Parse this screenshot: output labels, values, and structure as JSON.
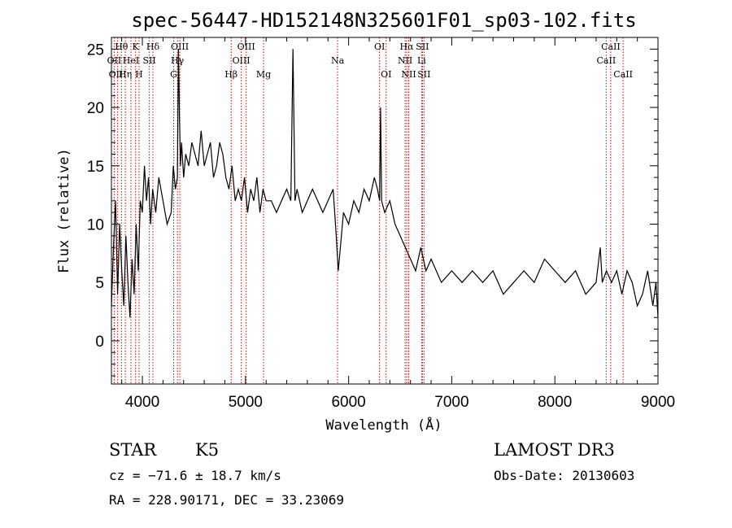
{
  "chart_data": {
    "type": "line",
    "title": "spec-56447-HD152148N325601F01_sp03-102.fits",
    "xlabel": "Wavelength (Å)",
    "ylabel": "Flux (relative)",
    "xlim": [
      3700,
      9000
    ],
    "ylim": [
      -3.7,
      26
    ],
    "x_ticks": [
      4000,
      5000,
      6000,
      7000,
      8000,
      9000
    ],
    "y_ticks": [
      0,
      5,
      10,
      15,
      20,
      25
    ],
    "grid": false,
    "series": [
      {
        "color": "#000000",
        "x": [
          3700,
          3720,
          3740,
          3760,
          3780,
          3800,
          3820,
          3840,
          3860,
          3880,
          3900,
          3920,
          3940,
          3960,
          3980,
          4000,
          4020,
          4040,
          4060,
          4080,
          4100,
          4130,
          4160,
          4200,
          4240,
          4280,
          4300,
          4320,
          4340,
          4350,
          4360,
          4370,
          4380,
          4400,
          4420,
          4450,
          4480,
          4510,
          4540,
          4570,
          4600,
          4630,
          4660,
          4690,
          4720,
          4750,
          4780,
          4810,
          4840,
          4870,
          4900,
          4930,
          4960,
          4990,
          5020,
          5050,
          5080,
          5110,
          5140,
          5170,
          5200,
          5250,
          5300,
          5350,
          5400,
          5440,
          5460,
          5480,
          5500,
          5550,
          5600,
          5650,
          5700,
          5750,
          5800,
          5850,
          5880,
          5900,
          5920,
          5950,
          6000,
          6050,
          6100,
          6150,
          6200,
          6250,
          6280,
          6300,
          6310,
          6320,
          6350,
          6400,
          6450,
          6500,
          6550,
          6600,
          6650,
          6700,
          6750,
          6800,
          6900,
          7000,
          7100,
          7200,
          7300,
          7400,
          7500,
          7600,
          7700,
          7800,
          7900,
          8000,
          8100,
          8200,
          8300,
          8400,
          8440,
          8460,
          8500,
          8550,
          8600,
          8650,
          8700,
          8750,
          8800,
          8850,
          8900,
          8950,
          8980,
          9000
        ],
        "values": [
          3,
          8,
          12,
          4,
          10,
          6,
          3,
          9,
          5,
          2,
          7,
          4,
          10,
          6,
          12,
          11,
          15,
          12,
          14,
          10,
          13,
          11,
          14,
          12,
          10,
          11,
          15,
          13,
          14,
          25,
          19,
          15,
          17,
          14,
          16,
          15,
          17,
          16,
          15,
          18,
          15,
          16,
          17,
          14,
          15,
          17,
          16,
          14,
          13,
          15,
          12,
          13,
          12,
          14,
          11,
          13,
          12,
          14,
          11,
          13,
          12,
          12,
          11,
          12,
          13,
          12,
          25,
          12,
          13,
          11,
          12,
          13,
          12,
          11,
          12,
          13,
          9,
          6,
          8,
          11,
          10,
          12,
          11,
          13,
          12,
          14,
          13,
          12,
          20,
          12,
          11,
          12,
          10,
          9,
          8,
          7,
          6,
          8,
          6,
          7,
          5,
          6,
          5,
          6,
          5,
          6,
          4,
          5,
          6,
          5,
          7,
          6,
          5,
          6,
          4,
          5,
          8,
          5,
          6,
          5,
          6,
          4,
          6,
          5,
          3,
          4,
          6,
          3,
          5,
          2
        ]
      }
    ],
    "line_markers": [
      {
        "label": "Hθ",
        "wl": 3797,
        "row": 0
      },
      {
        "label": "OII",
        "wl": 3727,
        "row": 1
      },
      {
        "label": "OIII",
        "wl": 3760,
        "row": 2
      },
      {
        "label": "K",
        "wl": 3934,
        "row": 0
      },
      {
        "label": "HeI",
        "wl": 3889,
        "row": 1
      },
      {
        "label": "Hη",
        "wl": 3835,
        "row": 2
      },
      {
        "label": "Hδ",
        "wl": 4102,
        "row": 0
      },
      {
        "label": "SII",
        "wl": 4068,
        "row": 1
      },
      {
        "label": "H",
        "wl": 3968,
        "row": 2
      },
      {
        "label": "OIII",
        "wl": 4363,
        "row": 0
      },
      {
        "label": "Hγ",
        "wl": 4340,
        "row": 1
      },
      {
        "label": "G",
        "wl": 4304,
        "row": 2
      },
      {
        "label": "OIII",
        "wl": 5007,
        "row": 0
      },
      {
        "label": "OIII",
        "wl": 4959,
        "row": 1
      },
      {
        "label": "Hβ",
        "wl": 4861,
        "row": 2
      },
      {
        "label": "Mg",
        "wl": 5175,
        "row": 2
      },
      {
        "label": "Na",
        "wl": 5893,
        "row": 1
      },
      {
        "label": "OI",
        "wl": 6300,
        "row": 0
      },
      {
        "label": "OI",
        "wl": 6364,
        "row": 2
      },
      {
        "label": "Hα",
        "wl": 6563,
        "row": 0
      },
      {
        "label": "SII",
        "wl": 6716,
        "row": 0
      },
      {
        "label": "NII",
        "wl": 6548,
        "row": 1
      },
      {
        "label": "Li",
        "wl": 6708,
        "row": 1
      },
      {
        "label": "NII",
        "wl": 6583,
        "row": 2
      },
      {
        "label": "SII",
        "wl": 6731,
        "row": 2
      },
      {
        "label": "CaII",
        "wl": 8542,
        "row": 0
      },
      {
        "label": "CaII",
        "wl": 8498,
        "row": 1
      },
      {
        "label": "CaII",
        "wl": 8662,
        "row": 2
      }
    ]
  },
  "info": {
    "object_class": "STAR",
    "subclass": "K5",
    "survey": "LAMOST DR3",
    "cz": "cz = −71.6 ± 18.7 km/s",
    "obs_date": "Obs-Date: 20130603",
    "coords": "RA = 228.90171, DEC =  33.23069"
  }
}
